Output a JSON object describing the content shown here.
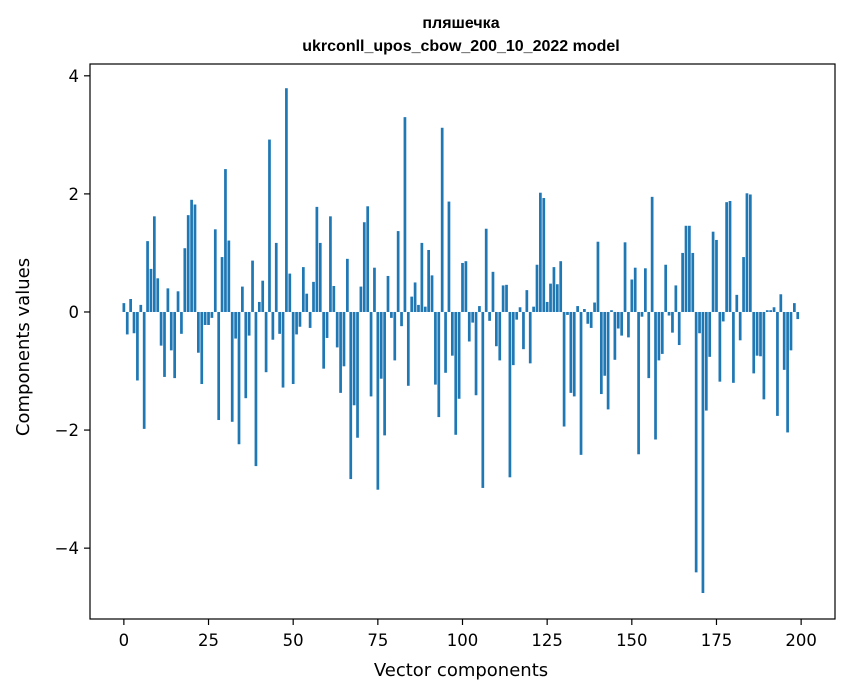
{
  "chart_data": {
    "type": "bar",
    "title": "пляшечка",
    "subtitle": "ukrconll_upos_cbow_200_10_2022 model",
    "xlabel": "Vector components",
    "ylabel": "Components values",
    "xlim": [
      -10,
      210
    ],
    "ylim": [
      -5.2,
      4.2
    ],
    "x_ticks": [
      0,
      25,
      50,
      75,
      100,
      125,
      150,
      175,
      200
    ],
    "x_tick_labels": [
      "0",
      "25",
      "50",
      "75",
      "100",
      "125",
      "150",
      "175",
      "200"
    ],
    "y_ticks": [
      -4,
      -2,
      0,
      2,
      4
    ],
    "y_tick_labels": [
      "−4",
      "−2",
      "0",
      "2",
      "4"
    ],
    "grid": false,
    "bar_color": "#1f77b4",
    "x": [
      0,
      1,
      2,
      3,
      4,
      5,
      6,
      7,
      8,
      9,
      10,
      11,
      12,
      13,
      14,
      15,
      16,
      17,
      18,
      19,
      20,
      21,
      22,
      23,
      24,
      25,
      26,
      27,
      28,
      29,
      30,
      31,
      32,
      33,
      34,
      35,
      36,
      37,
      38,
      39,
      40,
      41,
      42,
      43,
      44,
      45,
      46,
      47,
      48,
      49,
      50,
      51,
      52,
      53,
      54,
      55,
      56,
      57,
      58,
      59,
      60,
      61,
      62,
      63,
      64,
      65,
      66,
      67,
      68,
      69,
      70,
      71,
      72,
      73,
      74,
      75,
      76,
      77,
      78,
      79,
      80,
      81,
      82,
      83,
      84,
      85,
      86,
      87,
      88,
      89,
      90,
      91,
      92,
      93,
      94,
      95,
      96,
      97,
      98,
      99,
      100,
      101,
      102,
      103,
      104,
      105,
      106,
      107,
      108,
      109,
      110,
      111,
      112,
      113,
      114,
      115,
      116,
      117,
      118,
      119,
      120,
      121,
      122,
      123,
      124,
      125,
      126,
      127,
      128,
      129,
      130,
      131,
      132,
      133,
      134,
      135,
      136,
      137,
      138,
      139,
      140,
      141,
      142,
      143,
      144,
      145,
      146,
      147,
      148,
      149,
      150,
      151,
      152,
      153,
      154,
      155,
      156,
      157,
      158,
      159,
      160,
      161,
      162,
      163,
      164,
      165,
      166,
      167,
      168,
      169,
      170,
      171,
      172,
      173,
      174,
      175,
      176,
      177,
      178,
      179,
      180,
      181,
      182,
      183,
      184,
      185,
      186,
      187,
      188,
      189,
      190,
      191,
      192,
      193,
      194,
      195,
      196,
      197,
      198,
      199
    ],
    "values": [
      0.15,
      -0.38,
      0.22,
      -0.36,
      -1.16,
      0.12,
      -1.98,
      1.2,
      0.73,
      1.62,
      0.57,
      -0.57,
      -1.1,
      0.4,
      -0.65,
      -1.12,
      0.35,
      -0.37,
      1.08,
      1.64,
      1.9,
      1.82,
      -0.69,
      -1.22,
      -0.22,
      -0.22,
      -0.1,
      1.4,
      -1.83,
      0.93,
      2.42,
      1.21,
      -1.86,
      -0.45,
      -2.24,
      0.43,
      -1.46,
      -0.4,
      0.87,
      -2.61,
      0.17,
      0.53,
      -1.02,
      2.92,
      -0.47,
      1.17,
      -0.37,
      -1.28,
      3.79,
      0.65,
      -1.22,
      -0.38,
      -0.25,
      0.76,
      0.31,
      -0.27,
      0.51,
      1.78,
      1.17,
      -0.96,
      -0.44,
      1.62,
      0.44,
      -0.6,
      -1.37,
      -0.92,
      0.9,
      -2.83,
      -1.58,
      -2.13,
      0.43,
      1.52,
      1.79,
      -1.43,
      0.75,
      -3.01,
      -1.13,
      -2.09,
      0.61,
      -0.1,
      -0.82,
      1.37,
      -0.24,
      3.3,
      -1.25,
      0.26,
      0.5,
      0.12,
      1.17,
      0.09,
      1.05,
      0.62,
      -1.23,
      -1.78,
      3.12,
      -1.03,
      1.87,
      -0.74,
      -2.08,
      -1.47,
      0.83,
      0.86,
      -0.5,
      -0.18,
      -1.41,
      0.1,
      -2.98,
      1.41,
      -0.15,
      0.68,
      -0.58,
      -0.82,
      0.45,
      0.46,
      -2.8,
      -0.9,
      -0.13,
      0.08,
      -0.63,
      0.37,
      -0.87,
      0.09,
      0.8,
      2.02,
      1.93,
      0.17,
      0.48,
      0.76,
      0.47,
      0.86,
      -1.94,
      -0.05,
      -1.37,
      -1.43,
      0.1,
      -2.42,
      0.05,
      -0.2,
      -0.27,
      0.16,
      1.19,
      -1.39,
      -1.08,
      -1.65,
      0.03,
      -0.81,
      -0.28,
      -0.4,
      1.18,
      -0.43,
      0.55,
      0.75,
      -2.41,
      -0.08,
      0.74,
      -1.12,
      1.95,
      -2.16,
      -0.82,
      -0.71,
      0.8,
      -0.06,
      -0.35,
      0.45,
      -0.56,
      1.0,
      1.46,
      1.46,
      1.0,
      -4.41,
      -0.36,
      -4.76,
      -1.67,
      -0.76,
      1.36,
      1.22,
      -1.18,
      -0.16,
      1.86,
      1.88,
      -1.2,
      0.29,
      -0.48,
      0.93,
      2.01,
      1.99,
      -1.04,
      -0.74,
      -0.75,
      -1.48,
      0.03,
      0.03,
      0.08,
      -1.76,
      0.3,
      -0.98,
      -2.04,
      -0.65,
      0.15,
      -0.12
    ]
  }
}
